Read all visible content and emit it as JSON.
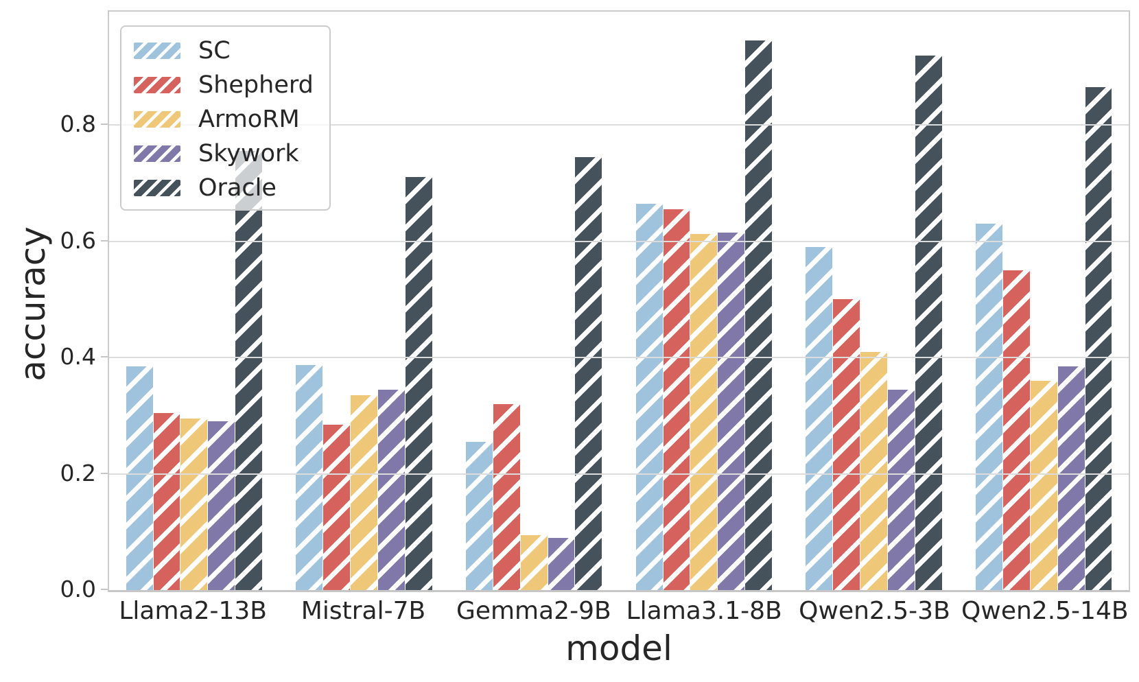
{
  "chart_data": {
    "type": "bar",
    "title": "",
    "xlabel": "model",
    "ylabel": "accuracy",
    "categories": [
      "Llama2-13B",
      "Mistral-7B",
      "Gemma2-9B",
      "Llama3.1-8B",
      "Qwen2.5-3B",
      "Qwen2.5-14B"
    ],
    "series": [
      {
        "name": "SC",
        "color": "#9fc3dc",
        "values": [
          0.385,
          0.387,
          0.255,
          0.665,
          0.59,
          0.63
        ]
      },
      {
        "name": "Shepherd",
        "color": "#d6625d",
        "values": [
          0.305,
          0.285,
          0.32,
          0.655,
          0.5,
          0.55
        ]
      },
      {
        "name": "ArmoRM",
        "color": "#eec878",
        "values": [
          0.295,
          0.335,
          0.095,
          0.613,
          0.41,
          0.36
        ]
      },
      {
        "name": "Skywork",
        "color": "#8178aa",
        "values": [
          0.29,
          0.345,
          0.09,
          0.615,
          0.345,
          0.385
        ]
      },
      {
        "name": "Oracle",
        "color": "#45525c",
        "values": [
          0.755,
          0.71,
          0.745,
          0.945,
          0.92,
          0.865
        ]
      }
    ],
    "yticks": [
      {
        "label": "0.0",
        "value": 0.0
      },
      {
        "label": "0.2",
        "value": 0.2
      },
      {
        "label": "0.4",
        "value": 0.4
      },
      {
        "label": "0.6",
        "value": 0.6
      },
      {
        "label": "0.8",
        "value": 0.8
      }
    ],
    "ylim": [
      0,
      0.995
    ],
    "grid": "horizontal",
    "hatch_pattern": "/",
    "legend_position": "upper-left",
    "colors": {
      "grid": "#dcdcdc",
      "axis_border": "#cccccc",
      "text": "#262626",
      "background": "#ffffff"
    }
  }
}
